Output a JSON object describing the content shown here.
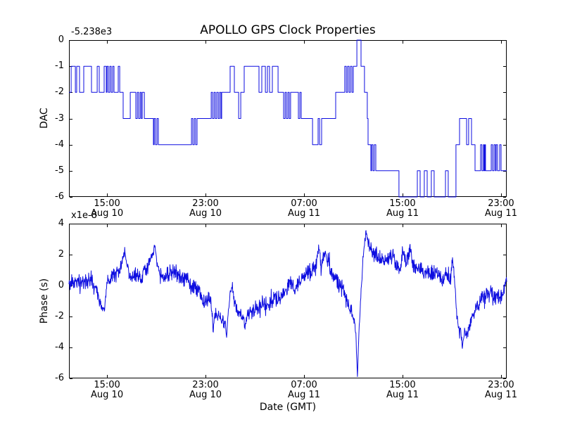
{
  "figure": {
    "title": "APOLLO GPS Clock Properties",
    "background_color": "#ffffff",
    "axes_color": "#000000",
    "line_color": "#0d0de0"
  },
  "chart_data": [
    {
      "type": "line",
      "subplot": "top",
      "title": "APOLLO GPS Clock Properties",
      "ylabel": "DAC",
      "offset_text": "-5.238e3",
      "line_style": "steps",
      "legend": "none",
      "grid": false,
      "ylim": [
        -6,
        0
      ],
      "yticks": [
        0,
        -1,
        -2,
        -3,
        -4,
        -5,
        -6
      ],
      "ytick_labels": [
        "0",
        "-1",
        "-2",
        "-3",
        "-4",
        "-5",
        "-6"
      ],
      "x_unit": "hours since Aug 10 00:00 GMT",
      "xlim_hours": [
        11.91,
        47.46
      ],
      "xticks": [
        {
          "hour": 15,
          "label": "15:00",
          "sublabel": "Aug 10"
        },
        {
          "hour": 23,
          "label": "23:00",
          "sublabel": "Aug 10"
        },
        {
          "hour": 31,
          "label": "07:00",
          "sublabel": "Aug 11"
        },
        {
          "hour": 39,
          "label": "15:00",
          "sublabel": "Aug 11"
        },
        {
          "hour": 47,
          "label": "23:00",
          "sublabel": "Aug 11"
        }
      ],
      "steps": [
        [
          11.91,
          -2
        ],
        [
          12.09,
          -1
        ],
        [
          12.43,
          -2
        ],
        [
          12.54,
          -1
        ],
        [
          12.77,
          -2
        ],
        [
          13.11,
          -1
        ],
        [
          13.74,
          -2
        ],
        [
          14.2,
          -1
        ],
        [
          14.37,
          -2
        ],
        [
          14.77,
          -1
        ],
        [
          14.94,
          -2
        ],
        [
          15.0,
          -1
        ],
        [
          15.11,
          -2
        ],
        [
          15.23,
          -1
        ],
        [
          15.34,
          -2
        ],
        [
          15.46,
          -1
        ],
        [
          15.57,
          -2
        ],
        [
          15.91,
          -1
        ],
        [
          16.03,
          -2
        ],
        [
          16.31,
          -3
        ],
        [
          16.89,
          -2
        ],
        [
          17.34,
          -3
        ],
        [
          17.46,
          -2
        ],
        [
          17.57,
          -3
        ],
        [
          17.69,
          -2
        ],
        [
          17.78,
          -3
        ],
        [
          17.86,
          -2
        ],
        [
          18.03,
          -3
        ],
        [
          18.77,
          -4
        ],
        [
          18.83,
          -3
        ],
        [
          18.94,
          -4
        ],
        [
          19.06,
          -3
        ],
        [
          19.17,
          -4
        ],
        [
          21.86,
          -3
        ],
        [
          21.97,
          -4
        ],
        [
          22.09,
          -3
        ],
        [
          22.2,
          -4
        ],
        [
          22.31,
          -3
        ],
        [
          23.46,
          -2
        ],
        [
          23.57,
          -3
        ],
        [
          23.69,
          -2
        ],
        [
          23.8,
          -3
        ],
        [
          23.91,
          -2
        ],
        [
          24.03,
          -3
        ],
        [
          24.14,
          -2
        ],
        [
          24.25,
          -3
        ],
        [
          24.31,
          -2
        ],
        [
          25.0,
          -1
        ],
        [
          25.34,
          -2
        ],
        [
          25.69,
          -3
        ],
        [
          25.86,
          -2
        ],
        [
          26.14,
          -1
        ],
        [
          27.34,
          -2
        ],
        [
          27.57,
          -1
        ],
        [
          27.86,
          -2
        ],
        [
          28.03,
          -1
        ],
        [
          28.2,
          -2
        ],
        [
          28.43,
          -1
        ],
        [
          28.89,
          -2
        ],
        [
          29.34,
          -3
        ],
        [
          29.46,
          -2
        ],
        [
          29.57,
          -3
        ],
        [
          29.69,
          -2
        ],
        [
          29.8,
          -3
        ],
        [
          29.91,
          -2
        ],
        [
          30.54,
          -3
        ],
        [
          30.66,
          -2
        ],
        [
          30.77,
          -3
        ],
        [
          31.69,
          -4
        ],
        [
          32.14,
          -3
        ],
        [
          32.26,
          -4
        ],
        [
          32.43,
          -3
        ],
        [
          33.57,
          -2
        ],
        [
          34.31,
          -1
        ],
        [
          34.43,
          -2
        ],
        [
          34.54,
          -1
        ],
        [
          34.66,
          -2
        ],
        [
          34.77,
          -1
        ],
        [
          34.89,
          -2
        ],
        [
          35.0,
          -1
        ],
        [
          35.29,
          0
        ],
        [
          35.63,
          -1
        ],
        [
          35.91,
          -2
        ],
        [
          36.14,
          -3
        ],
        [
          36.2,
          -4
        ],
        [
          36.43,
          -5
        ],
        [
          36.49,
          -4
        ],
        [
          36.6,
          -5
        ],
        [
          36.71,
          -4
        ],
        [
          36.83,
          -5
        ],
        [
          38.71,
          -6
        ],
        [
          40.2,
          -5
        ],
        [
          40.43,
          -6
        ],
        [
          40.77,
          -5
        ],
        [
          41.0,
          -6
        ],
        [
          41.34,
          -5
        ],
        [
          41.57,
          -6
        ],
        [
          42.49,
          -5
        ],
        [
          42.71,
          -6
        ],
        [
          43.34,
          -4
        ],
        [
          43.63,
          -3
        ],
        [
          44.2,
          -4
        ],
        [
          44.37,
          -3
        ],
        [
          44.6,
          -4
        ],
        [
          44.89,
          -5
        ],
        [
          45.34,
          -4
        ],
        [
          45.45,
          -5
        ],
        [
          45.57,
          -4
        ],
        [
          45.63,
          -5
        ],
        [
          45.69,
          -4
        ],
        [
          45.74,
          -5
        ],
        [
          46.2,
          -4
        ],
        [
          46.31,
          -5
        ],
        [
          46.43,
          -4
        ],
        [
          46.54,
          -5
        ],
        [
          46.6,
          -4
        ],
        [
          46.71,
          -5
        ],
        [
          46.89,
          -4
        ],
        [
          47.0,
          -5
        ]
      ]
    },
    {
      "type": "line",
      "subplot": "bottom",
      "ylabel": "Phase (s)",
      "xlabel": "Date (GMT)",
      "multiplier_text": "x1e-8",
      "y_unit": "1e-8 s",
      "line_style": "noisy",
      "legend": "none",
      "grid": false,
      "ylim": [
        -6,
        4
      ],
      "yticks": [
        4,
        2,
        0,
        -2,
        -4,
        -6
      ],
      "ytick_labels": [
        "4",
        "2",
        "0",
        "-2",
        "-4",
        "-6"
      ],
      "x_unit": "hours since Aug 10 00:00 GMT",
      "xlim_hours": [
        11.91,
        47.46
      ],
      "xticks": [
        {
          "hour": 15,
          "label": "15:00",
          "sublabel": "Aug 10"
        },
        {
          "hour": 23,
          "label": "23:00",
          "sublabel": "Aug 10"
        },
        {
          "hour": 31,
          "label": "07:00",
          "sublabel": "Aug 11"
        },
        {
          "hour": 39,
          "label": "15:00",
          "sublabel": "Aug 11"
        },
        {
          "hour": 47,
          "label": "23:00",
          "sublabel": "Aug 11"
        }
      ],
      "noise_seed": 42,
      "sample_step_hours": 0.025,
      "anchors": [
        [
          11.91,
          0.0,
          0.35
        ],
        [
          12.03,
          0.1,
          0.35
        ],
        [
          12.6,
          0.3,
          0.35
        ],
        [
          13.17,
          0.2,
          0.4
        ],
        [
          13.74,
          0.4,
          0.4
        ],
        [
          14.2,
          -0.3,
          0.35
        ],
        [
          14.31,
          -0.9,
          0.3
        ],
        [
          14.6,
          -1.3,
          0.25
        ],
        [
          14.77,
          -1.6,
          0.2
        ],
        [
          15.0,
          0.2,
          0.35
        ],
        [
          15.34,
          0.5,
          0.4
        ],
        [
          15.74,
          0.8,
          0.4
        ],
        [
          16.03,
          1.0,
          0.4
        ],
        [
          16.31,
          1.8,
          0.3
        ],
        [
          16.43,
          2.3,
          0.2
        ],
        [
          16.6,
          1.4,
          0.3
        ],
        [
          16.89,
          0.4,
          0.4
        ],
        [
          17.17,
          0.5,
          0.4
        ],
        [
          17.46,
          0.6,
          0.4
        ],
        [
          17.74,
          0.5,
          0.45
        ],
        [
          18.03,
          0.9,
          0.45
        ],
        [
          18.31,
          1.2,
          0.4
        ],
        [
          18.49,
          1.5,
          0.35
        ],
        [
          18.71,
          1.9,
          0.3
        ],
        [
          18.89,
          2.7,
          0.15
        ],
        [
          19.06,
          1.3,
          0.3
        ],
        [
          19.34,
          0.8,
          0.4
        ],
        [
          19.57,
          0.4,
          0.4
        ],
        [
          20.03,
          0.9,
          0.45
        ],
        [
          20.6,
          0.8,
          0.45
        ],
        [
          21.29,
          0.5,
          0.45
        ],
        [
          21.74,
          0.1,
          0.45
        ],
        [
          22.31,
          -0.4,
          0.45
        ],
        [
          22.89,
          -0.9,
          0.45
        ],
        [
          23.23,
          -0.6,
          0.45
        ],
        [
          23.46,
          -1.2,
          0.4
        ],
        [
          23.63,
          -2.8,
          0.25
        ],
        [
          23.74,
          -2.0,
          0.3
        ],
        [
          24.03,
          -1.8,
          0.35
        ],
        [
          24.31,
          -2.2,
          0.35
        ],
        [
          24.6,
          -2.4,
          0.3
        ],
        [
          24.71,
          -3.2,
          0.25
        ],
        [
          25.0,
          -0.4,
          0.3
        ],
        [
          25.17,
          -0.1,
          0.3
        ],
        [
          25.34,
          -1.0,
          0.35
        ],
        [
          25.57,
          -1.6,
          0.35
        ],
        [
          25.86,
          -1.8,
          0.35
        ],
        [
          26.2,
          -2.5,
          0.3
        ],
        [
          26.43,
          -1.9,
          0.35
        ],
        [
          26.77,
          -1.6,
          0.4
        ],
        [
          27.17,
          -1.4,
          0.4
        ],
        [
          27.57,
          -1.2,
          0.4
        ],
        [
          28.03,
          -1.2,
          0.45
        ],
        [
          28.6,
          -0.9,
          0.45
        ],
        [
          29.17,
          -0.7,
          0.45
        ],
        [
          29.63,
          -0.2,
          0.45
        ],
        [
          29.86,
          0.3,
          0.4
        ],
        [
          30.2,
          -0.3,
          0.45
        ],
        [
          30.6,
          0.2,
          0.5
        ],
        [
          31.0,
          0.6,
          0.5
        ],
        [
          31.34,
          0.9,
          0.5
        ],
        [
          31.74,
          1.1,
          0.5
        ],
        [
          32.03,
          1.4,
          0.45
        ],
        [
          32.2,
          2.6,
          0.3
        ],
        [
          32.37,
          1.4,
          0.45
        ],
        [
          32.6,
          1.9,
          0.4
        ],
        [
          32.77,
          2.2,
          0.4
        ],
        [
          33.06,
          1.2,
          0.5
        ],
        [
          33.29,
          0.8,
          0.5
        ],
        [
          33.63,
          0.4,
          0.5
        ],
        [
          33.97,
          0.0,
          0.45
        ],
        [
          34.31,
          -0.5,
          0.45
        ],
        [
          34.6,
          -1.2,
          0.4
        ],
        [
          34.89,
          -1.8,
          0.35
        ],
        [
          35.11,
          -2.3,
          0.3
        ],
        [
          35.23,
          -3.5,
          0.2
        ],
        [
          35.29,
          -5.0,
          0.15
        ],
        [
          35.34,
          -5.9,
          0.1
        ],
        [
          35.46,
          -3.0,
          0.2
        ],
        [
          35.63,
          -0.5,
          0.25
        ],
        [
          35.8,
          2.0,
          0.3
        ],
        [
          36.03,
          3.5,
          0.2
        ],
        [
          36.2,
          2.8,
          0.3
        ],
        [
          36.43,
          2.2,
          0.35
        ],
        [
          36.71,
          1.9,
          0.4
        ],
        [
          37.06,
          1.8,
          0.4
        ],
        [
          37.46,
          1.7,
          0.4
        ],
        [
          37.86,
          1.8,
          0.4
        ],
        [
          38.2,
          1.9,
          0.4
        ],
        [
          38.49,
          1.3,
          0.4
        ],
        [
          38.77,
          1.0,
          0.4
        ],
        [
          39.0,
          2.2,
          0.35
        ],
        [
          39.23,
          1.4,
          0.4
        ],
        [
          39.46,
          1.8,
          0.4
        ],
        [
          39.63,
          2.4,
          0.3
        ],
        [
          39.86,
          1.4,
          0.4
        ],
        [
          40.14,
          1.2,
          0.45
        ],
        [
          40.49,
          1.0,
          0.45
        ],
        [
          40.89,
          0.9,
          0.45
        ],
        [
          41.29,
          0.7,
          0.45
        ],
        [
          41.74,
          0.8,
          0.45
        ],
        [
          42.2,
          0.5,
          0.45
        ],
        [
          42.6,
          0.6,
          0.4
        ],
        [
          42.89,
          0.4,
          0.4
        ],
        [
          43.06,
          1.7,
          0.25
        ],
        [
          43.23,
          0.3,
          0.3
        ],
        [
          43.4,
          -1.5,
          0.3
        ],
        [
          43.57,
          -2.8,
          0.3
        ],
        [
          43.74,
          -3.0,
          0.3
        ],
        [
          43.86,
          -4.1,
          0.2
        ],
        [
          44.03,
          -2.9,
          0.3
        ],
        [
          44.2,
          -3.1,
          0.3
        ],
        [
          44.43,
          -2.6,
          0.3
        ],
        [
          44.71,
          -1.9,
          0.35
        ],
        [
          45.06,
          -1.2,
          0.4
        ],
        [
          45.4,
          -0.8,
          0.45
        ],
        [
          45.74,
          -0.6,
          0.45
        ],
        [
          46.14,
          -0.5,
          0.45
        ],
        [
          46.49,
          -0.7,
          0.45
        ],
        [
          46.77,
          -0.5,
          0.45
        ],
        [
          47.06,
          -0.8,
          0.4
        ],
        [
          47.23,
          -0.4,
          0.35
        ],
        [
          47.4,
          0.5,
          0.25
        ],
        [
          47.46,
          0.6,
          0.2
        ]
      ]
    }
  ]
}
